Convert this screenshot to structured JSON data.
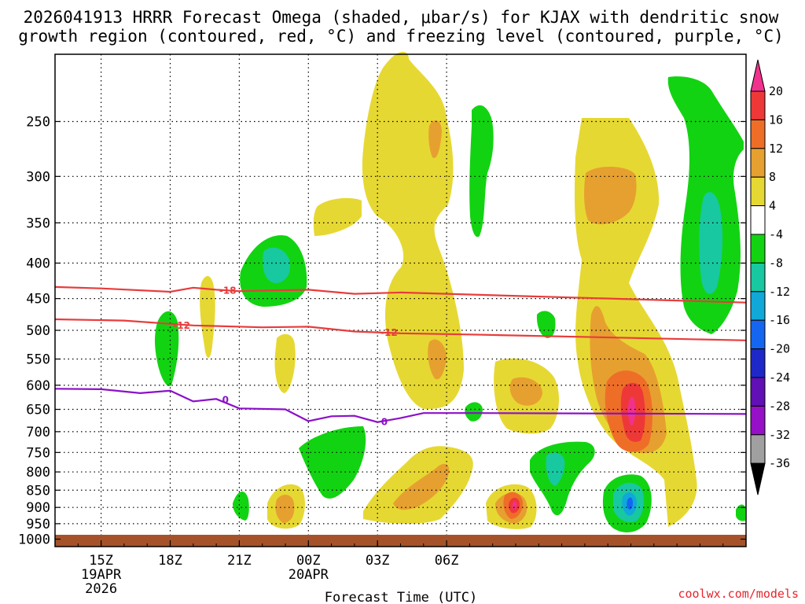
{
  "chart_data": {
    "type": "heatmap",
    "title_line1": "2026041913 HRRR Forecast Omega (shaded, μbar/s) for KJAX with dendritic snow",
    "title_line2": "growth region (contoured, red, °C) and freezing level (contoured, purple, °C)",
    "xlabel": "Forecast Time (UTC)",
    "xlim_hours": [
      13,
      43
    ],
    "x_ticks": [
      {
        "hour": 15,
        "label": "15Z",
        "date": "19APR",
        "year": "2026"
      },
      {
        "hour": 18,
        "label": "18Z",
        "date": "",
        "year": ""
      },
      {
        "hour": 21,
        "label": "21Z",
        "date": "",
        "year": ""
      },
      {
        "hour": 24,
        "label": "00Z",
        "date": "20APR",
        "year": ""
      },
      {
        "hour": 27,
        "label": "03Z",
        "date": "",
        "year": ""
      },
      {
        "hour": 30,
        "label": "06Z",
        "date": "",
        "year": ""
      }
    ],
    "y_ticks": [
      250,
      300,
      350,
      400,
      450,
      500,
      550,
      600,
      650,
      700,
      750,
      800,
      850,
      900,
      950,
      1000
    ],
    "y_scale": "log-pressure",
    "ylim_hPa": [
      1025,
      200
    ],
    "colorbar": {
      "labels": [
        "20",
        "16",
        "12",
        "8",
        "4",
        "-4",
        "-8",
        "-12",
        "-16",
        "-20",
        "-24",
        "-28",
        "-32",
        "-36"
      ],
      "colors": [
        "#f0328c",
        "#ee3838",
        "#ee6e28",
        "#e6a030",
        "#e6d832",
        "#ffffff",
        "#12d312",
        "#18c8a0",
        "#10a8d8",
        "#1466f0",
        "#1e28c8",
        "#6010b4",
        "#9610c8",
        "#a0a0a0",
        "#000000"
      ]
    },
    "contours": [
      {
        "name": "dendritic-upper",
        "value": "-18",
        "color": "#e83c3c",
        "points": [
          [
            13,
            433
          ],
          [
            15,
            435
          ],
          [
            18,
            440
          ],
          [
            19,
            434
          ],
          [
            20,
            437
          ],
          [
            21,
            439
          ],
          [
            24,
            437
          ],
          [
            26,
            443
          ],
          [
            28,
            441
          ],
          [
            31,
            444
          ],
          [
            43,
            456
          ]
        ]
      },
      {
        "name": "dendritic-lower",
        "value": "-12",
        "color": "#e83c3c",
        "points": [
          [
            13,
            482
          ],
          [
            16,
            484
          ],
          [
            19,
            492
          ],
          [
            22,
            495
          ],
          [
            24,
            494
          ],
          [
            26,
            502
          ],
          [
            28,
            505
          ],
          [
            31,
            507
          ],
          [
            43,
            517
          ]
        ]
      },
      {
        "name": "freezing-level",
        "value": "0",
        "color": "#8c10c8",
        "points": [
          [
            13,
            607
          ],
          [
            15,
            608
          ],
          [
            16.7,
            616
          ],
          [
            18,
            611
          ],
          [
            19,
            633
          ],
          [
            20,
            628
          ],
          [
            21,
            648
          ],
          [
            23,
            650
          ],
          [
            24,
            676
          ],
          [
            25,
            665
          ],
          [
            26,
            664
          ],
          [
            27,
            678
          ],
          [
            28,
            669
          ],
          [
            29,
            658
          ],
          [
            31,
            658
          ],
          [
            43,
            660
          ]
        ]
      }
    ],
    "contour_labels": [
      {
        "text": "-18",
        "x": 20.5,
        "p": 438,
        "color": "#e83c3c"
      },
      {
        "text": "-12",
        "x": 18.5,
        "p": 492,
        "color": "#e83c3c"
      },
      {
        "text": "-12",
        "x": 27.5,
        "p": 504,
        "color": "#e83c3c"
      },
      {
        "text": "0",
        "x": 20.4,
        "p": 630,
        "color": "#8c10c8"
      },
      {
        "text": "0",
        "x": 27.3,
        "p": 678,
        "color": "#8c10c8"
      }
    ]
  },
  "credit": "coolwx.com/models"
}
